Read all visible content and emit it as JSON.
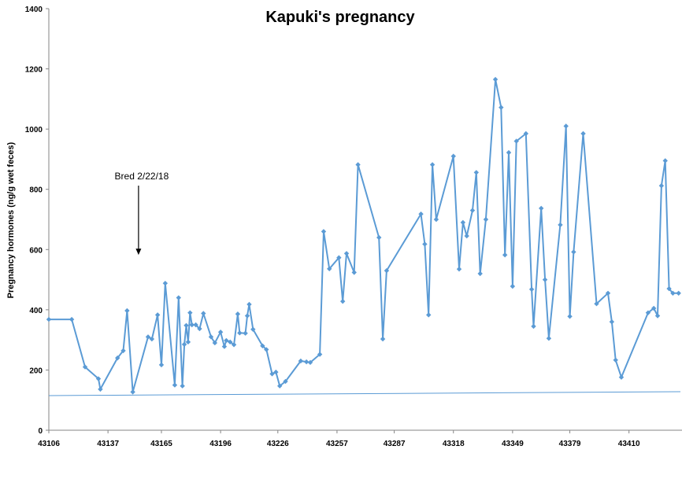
{
  "chart_data": {
    "type": "line",
    "title": "Kapuki's pregnancy",
    "xlabel": "",
    "ylabel": "Pregnancy hormones (ng/g wet feces)",
    "xlim": [
      43106,
      43432
    ],
    "ylim": [
      0,
      1400
    ],
    "x_ticks": [
      43106,
      43137,
      43165,
      43196,
      43226,
      43257,
      43287,
      43318,
      43349,
      43379,
      43410
    ],
    "y_ticks": [
      0,
      200,
      400,
      600,
      800,
      1000,
      1200,
      1400
    ],
    "grid": false,
    "series_color": "#5B9BD5",
    "annotation": {
      "text": "Bred 2/22/18",
      "x": 43153,
      "arrow_to_y": 590
    },
    "trendline": {
      "x": [
        43106,
        43432
      ],
      "y": [
        115,
        128
      ]
    },
    "series": [
      {
        "values": [
          [
            43106,
            368
          ],
          [
            43118,
            368
          ],
          [
            43125,
            210
          ],
          [
            43132,
            171
          ],
          [
            43133,
            136
          ],
          [
            43142,
            240
          ],
          [
            43145,
            264
          ],
          [
            43147,
            397
          ],
          [
            43150,
            127
          ],
          [
            43158,
            310
          ],
          [
            43160,
            303
          ],
          [
            43163,
            383
          ],
          [
            43165,
            217
          ],
          [
            43167,
            488
          ],
          [
            43172,
            150
          ],
          [
            43174,
            440
          ],
          [
            43176,
            147
          ],
          [
            43177,
            285
          ],
          [
            43178,
            348
          ],
          [
            43179,
            293
          ],
          [
            43180,
            390
          ],
          [
            43181,
            350
          ],
          [
            43183,
            350
          ],
          [
            43185,
            337
          ],
          [
            43187,
            388
          ],
          [
            43191,
            310
          ],
          [
            43193,
            290
          ],
          [
            43196,
            326
          ],
          [
            43198,
            278
          ],
          [
            43199,
            298
          ],
          [
            43201,
            293
          ],
          [
            43203,
            284
          ],
          [
            43205,
            386
          ],
          [
            43206,
            323
          ],
          [
            43209,
            322
          ],
          [
            43210,
            380
          ],
          [
            43211,
            418
          ],
          [
            43213,
            335
          ],
          [
            43218,
            280
          ],
          [
            43220,
            268
          ],
          [
            43223,
            187
          ],
          [
            43225,
            193
          ],
          [
            43227,
            147
          ],
          [
            43230,
            162
          ],
          [
            43238,
            230
          ],
          [
            43241,
            227
          ],
          [
            43243,
            225
          ],
          [
            43248,
            252
          ],
          [
            43250,
            660
          ],
          [
            43253,
            536
          ],
          [
            43258,
            573
          ],
          [
            43260,
            428
          ],
          [
            43262,
            587
          ],
          [
            43266,
            524
          ],
          [
            43268,
            882
          ],
          [
            43279,
            640
          ],
          [
            43281,
            303
          ],
          [
            43283,
            530
          ],
          [
            43301,
            718
          ],
          [
            43303,
            618
          ],
          [
            43305,
            383
          ],
          [
            43307,
            882
          ],
          [
            43309,
            700
          ],
          [
            43318,
            910
          ],
          [
            43321,
            535
          ],
          [
            43323,
            690
          ],
          [
            43325,
            645
          ],
          [
            43328,
            730
          ],
          [
            43330,
            856
          ],
          [
            43332,
            520
          ],
          [
            43335,
            700
          ],
          [
            43340,
            1165
          ],
          [
            43343,
            1072
          ],
          [
            43345,
            582
          ],
          [
            43347,
            922
          ],
          [
            43349,
            478
          ],
          [
            43351,
            960
          ],
          [
            43356,
            985
          ],
          [
            43359,
            468
          ],
          [
            43360,
            345
          ],
          [
            43364,
            737
          ],
          [
            43366,
            500
          ],
          [
            43368,
            305
          ],
          [
            43374,
            682
          ],
          [
            43377,
            1010
          ],
          [
            43379,
            378
          ],
          [
            43381,
            592
          ],
          [
            43386,
            985
          ],
          [
            43393,
            420
          ],
          [
            43399,
            455
          ],
          [
            43401,
            360
          ],
          [
            43403,
            233
          ],
          [
            43406,
            176
          ],
          [
            43420,
            390
          ],
          [
            43423,
            405
          ],
          [
            43425,
            380
          ],
          [
            43427,
            812
          ],
          [
            43429,
            895
          ],
          [
            43431,
            470
          ],
          [
            43433,
            455
          ],
          [
            43436,
            455
          ]
        ]
      }
    ]
  }
}
